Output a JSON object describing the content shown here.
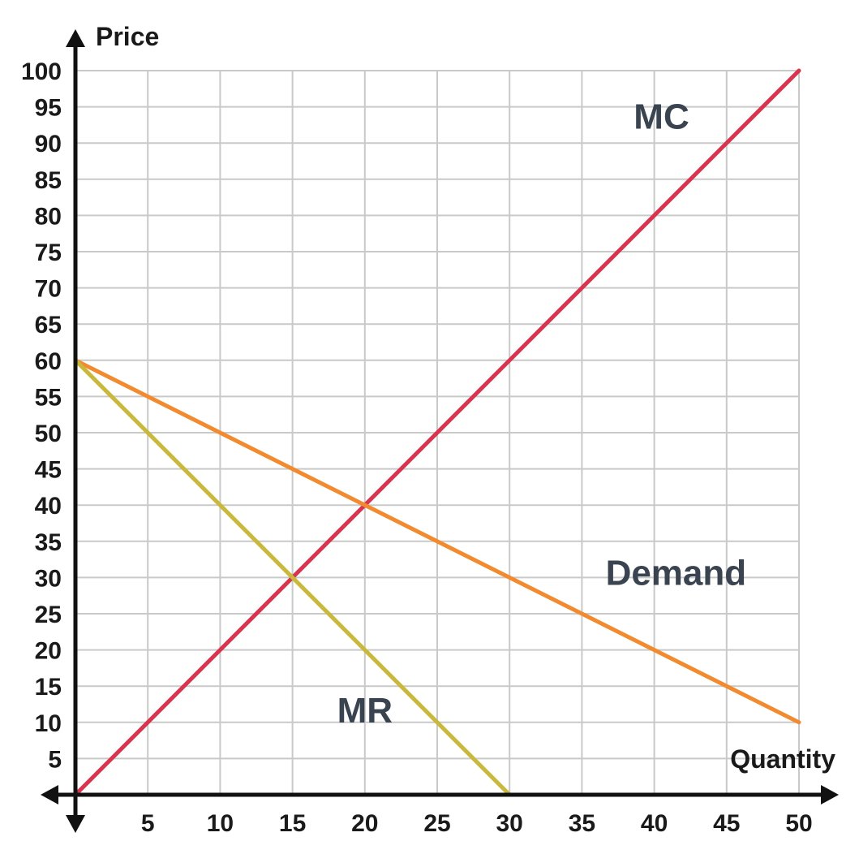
{
  "chart_data": {
    "type": "line",
    "xlabel": "Quantity",
    "ylabel": "Price",
    "xlim": [
      0,
      50
    ],
    "ylim": [
      0,
      100
    ],
    "xticks": [
      5,
      10,
      15,
      20,
      25,
      30,
      35,
      40,
      45,
      50
    ],
    "yticks": [
      5,
      10,
      15,
      20,
      25,
      30,
      35,
      40,
      45,
      50,
      55,
      60,
      65,
      70,
      75,
      80,
      85,
      90,
      95,
      100
    ],
    "grid": true,
    "series": [
      {
        "name": "MC",
        "color": "#d8344f",
        "points": [
          [
            0,
            0
          ],
          [
            50,
            100
          ]
        ]
      },
      {
        "name": "Demand",
        "color": "#f28a30",
        "points": [
          [
            0,
            60
          ],
          [
            50,
            10
          ]
        ]
      },
      {
        "name": "MR",
        "color": "#c9b83a",
        "points": [
          [
            0,
            60
          ],
          [
            30,
            0
          ]
        ]
      }
    ],
    "labels": [
      {
        "text": "MC",
        "x": 40.5,
        "y": 92
      },
      {
        "text": "Demand",
        "x": 41.5,
        "y": 29
      },
      {
        "text": "MR",
        "x": 20,
        "y": 10
      }
    ]
  }
}
